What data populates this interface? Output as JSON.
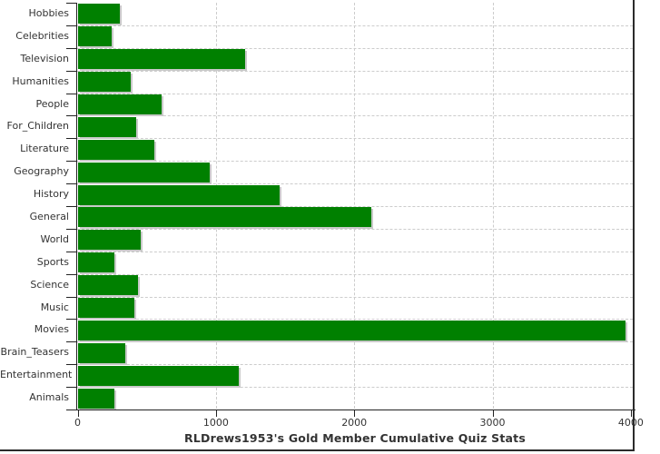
{
  "chart_data": {
    "type": "bar",
    "orientation": "horizontal",
    "title": "RLDrews1953's Gold Member Cumulative Quiz Stats",
    "categories": [
      "Hobbies",
      "Celebrities",
      "Television",
      "Humanities",
      "People",
      "For_Children",
      "Literature",
      "Geography",
      "History",
      "General",
      "World",
      "Sports",
      "Science",
      "Music",
      "Movies",
      "Brain_Teasers",
      "Entertainment",
      "Animals"
    ],
    "values": [
      300,
      245,
      1210,
      380,
      605,
      420,
      550,
      955,
      1460,
      2120,
      455,
      260,
      430,
      405,
      3960,
      340,
      1165,
      265
    ],
    "x_ticks": [
      0,
      1000,
      2000,
      3000,
      4000
    ],
    "x_tick_labels": [
      "0",
      "1000",
      "2000",
      "3000",
      "4000"
    ],
    "xlim": [
      0,
      4030
    ],
    "xlabel": "",
    "ylabel": "",
    "grid": "dashed",
    "legend": "none",
    "bar_color": "#008000",
    "bar_shadow_color": "#c9c9c9",
    "gridline_color": "#cccccc",
    "axis_color": "#222222",
    "text_color": "#333333",
    "frame_color": "#2b2b2b",
    "background_color": "#ffffff"
  }
}
